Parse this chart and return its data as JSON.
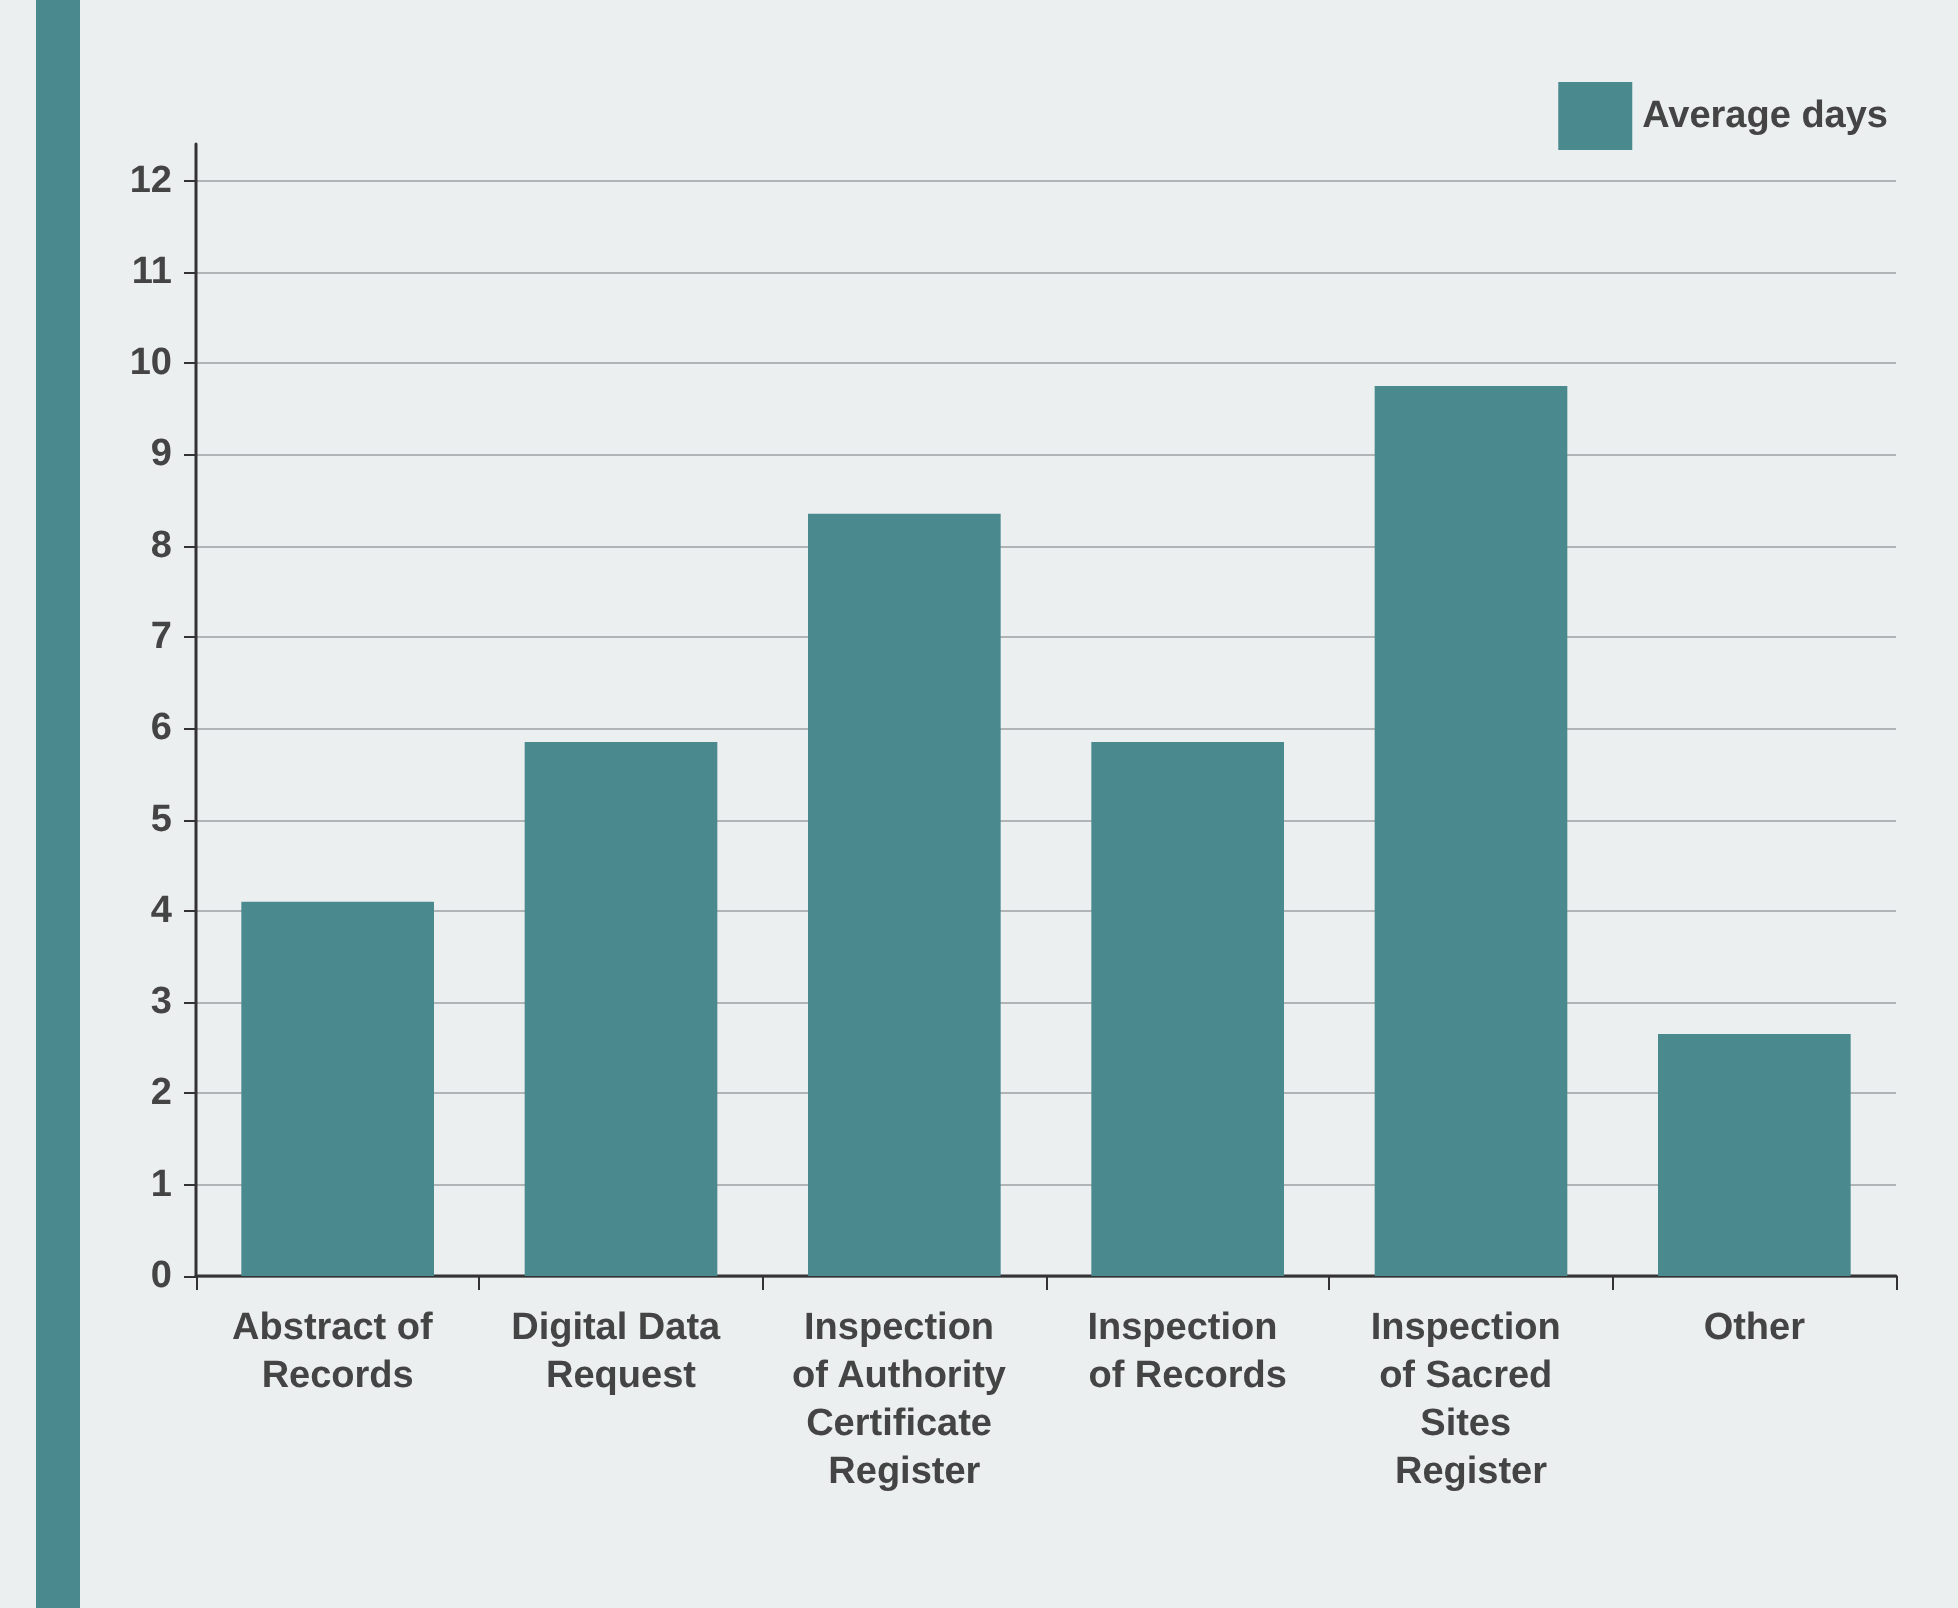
{
  "chart_data": {
    "type": "bar",
    "categories": [
      "Abstract of Records",
      "Digital Data Request",
      "Inspection of Authority Certificate Register",
      "Inspection of Records",
      "Inspection of Sacred Sites Register",
      "Other"
    ],
    "series": [
      {
        "name": "Average days",
        "color": "#4a8a8e",
        "values": [
          4.1,
          5.85,
          8.35,
          5.85,
          9.75,
          2.65
        ]
      }
    ],
    "ylim": [
      0,
      12.4
    ],
    "yticks": [
      0,
      1,
      2,
      3,
      4,
      5,
      6,
      7,
      8,
      9,
      10,
      11,
      12
    ],
    "grid": "y",
    "legend": "top right"
  }
}
